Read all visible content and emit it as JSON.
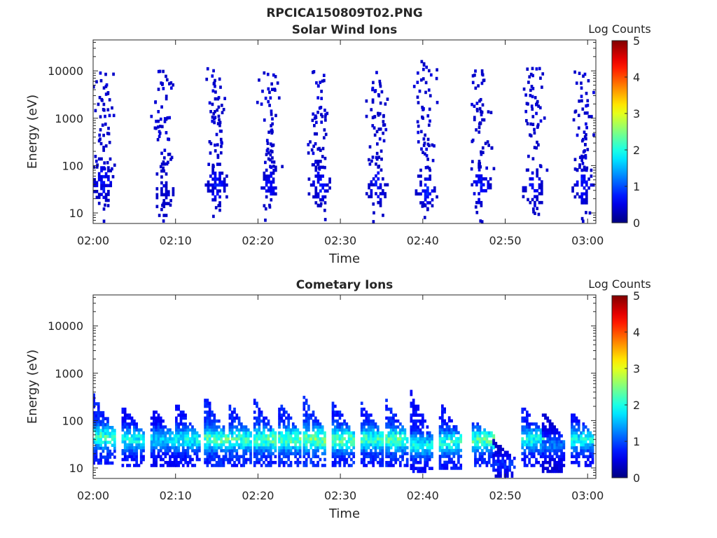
{
  "figure_title": "RPCICA150809T02.PNG",
  "colors": {
    "axis": "#262626",
    "colormap": "jet"
  },
  "chart_data": [
    {
      "type": "heatmap",
      "title": "Solar Wind Ions",
      "xlabel": "Time",
      "ylabel": "Energy (eV)",
      "yscale": "log",
      "ylim": [
        6,
        45000
      ],
      "xlim": [
        "02:00",
        "03:01"
      ],
      "x_ticks": [
        "02:00",
        "02:10",
        "02:20",
        "02:30",
        "02:40",
        "02:50",
        "03:00"
      ],
      "y_ticks": [
        "10",
        "100",
        "1000",
        "10000"
      ],
      "colorbar": {
        "label": "Log Counts",
        "range": [
          0,
          5
        ],
        "ticks": [
          "0",
          "1",
          "2",
          "3",
          "4",
          "5"
        ]
      },
      "bursts": [
        {
          "time_min": 1.2,
          "peak_energy_ev": 45,
          "sparse_max_ev": 10000,
          "peak_log_counts": 0.9
        },
        {
          "time_min": 8.5,
          "peak_energy_ev": 25,
          "sparse_max_ev": 10000,
          "peak_log_counts": 0.6
        },
        {
          "time_min": 15.0,
          "peak_energy_ev": 40,
          "sparse_max_ev": 12000,
          "peak_log_counts": 0.9
        },
        {
          "time_min": 21.5,
          "peak_energy_ev": 40,
          "sparse_max_ev": 10000,
          "peak_log_counts": 0.9
        },
        {
          "time_min": 27.5,
          "peak_energy_ev": 40,
          "sparse_max_ev": 10000,
          "peak_log_counts": 0.9
        },
        {
          "time_min": 34.5,
          "peak_energy_ev": 35,
          "sparse_max_ev": 10000,
          "peak_log_counts": 0.9
        },
        {
          "time_min": 40.5,
          "peak_energy_ev": 30,
          "sparse_max_ev": 18000,
          "peak_log_counts": 0.9
        },
        {
          "time_min": 47.0,
          "peak_energy_ev": 35,
          "sparse_max_ev": 10000,
          "peak_log_counts": 0.9
        },
        {
          "time_min": 53.5,
          "peak_energy_ev": 35,
          "sparse_max_ev": 12000,
          "peak_log_counts": 0.9
        },
        {
          "time_min": 59.5,
          "peak_energy_ev": 40,
          "sparse_max_ev": 10000,
          "peak_log_counts": 0.9
        }
      ]
    },
    {
      "type": "heatmap",
      "title": "Cometary Ions",
      "xlabel": "Time",
      "ylabel": "Energy (eV)",
      "yscale": "log",
      "ylim": [
        6,
        45000
      ],
      "xlim": [
        "02:00",
        "03:01"
      ],
      "x_ticks": [
        "02:00",
        "02:10",
        "02:20",
        "02:30",
        "02:40",
        "02:50",
        "03:00"
      ],
      "y_ticks": [
        "10",
        "100",
        "1000",
        "10000"
      ],
      "colorbar": {
        "label": "Log Counts",
        "range": [
          0,
          5
        ],
        "ticks": [
          "0",
          "1",
          "2",
          "3",
          "4",
          "5"
        ]
      },
      "bursts": [
        {
          "time_min": 1.5,
          "peak_energy_ev": 45,
          "max_energy_ev": 350,
          "peak_log_counts": 2.3
        },
        {
          "time_min": 5.0,
          "peak_energy_ev": 40,
          "max_energy_ev": 200,
          "peak_log_counts": 2.0
        },
        {
          "time_min": 8.5,
          "peak_energy_ev": 40,
          "max_energy_ev": 200,
          "peak_log_counts": 1.8
        },
        {
          "time_min": 11.5,
          "peak_energy_ev": 40,
          "max_energy_ev": 250,
          "peak_log_counts": 2.0
        },
        {
          "time_min": 15.0,
          "peak_energy_ev": 40,
          "max_energy_ev": 350,
          "peak_log_counts": 2.4
        },
        {
          "time_min": 18.0,
          "peak_energy_ev": 40,
          "max_energy_ev": 250,
          "peak_log_counts": 2.3
        },
        {
          "time_min": 21.0,
          "peak_energy_ev": 40,
          "max_energy_ev": 280,
          "peak_log_counts": 2.4
        },
        {
          "time_min": 24.0,
          "peak_energy_ev": 40,
          "max_energy_ev": 300,
          "peak_log_counts": 2.4
        },
        {
          "time_min": 27.0,
          "peak_energy_ev": 40,
          "max_energy_ev": 350,
          "peak_log_counts": 2.6
        },
        {
          "time_min": 30.5,
          "peak_energy_ev": 40,
          "max_energy_ev": 250,
          "peak_log_counts": 2.4
        },
        {
          "time_min": 34.0,
          "peak_energy_ev": 40,
          "max_energy_ev": 250,
          "peak_log_counts": 2.3
        },
        {
          "time_min": 37.0,
          "peak_energy_ev": 40,
          "max_energy_ev": 300,
          "peak_log_counts": 2.4
        },
        {
          "time_min": 40.0,
          "peak_energy_ev": 30,
          "max_energy_ev": 450,
          "peak_log_counts": 2.0
        },
        {
          "time_min": 43.5,
          "peak_energy_ev": 35,
          "max_energy_ev": 250,
          "peak_log_counts": 2.2
        },
        {
          "time_min": 47.5,
          "peak_energy_ev": 40,
          "max_energy_ev": 100,
          "peak_log_counts": 2.4
        },
        {
          "time_min": 50.0,
          "peak_energy_ev": 12,
          "max_energy_ev": 40,
          "peak_log_counts": 0.9
        },
        {
          "time_min": 53.5,
          "peak_energy_ev": 40,
          "max_energy_ev": 200,
          "peak_log_counts": 2.1
        },
        {
          "time_min": 56.0,
          "peak_energy_ev": 30,
          "max_energy_ev": 150,
          "peak_log_counts": 1.3
        },
        {
          "time_min": 59.5,
          "peak_energy_ev": 40,
          "max_energy_ev": 150,
          "peak_log_counts": 2.0
        }
      ]
    }
  ]
}
